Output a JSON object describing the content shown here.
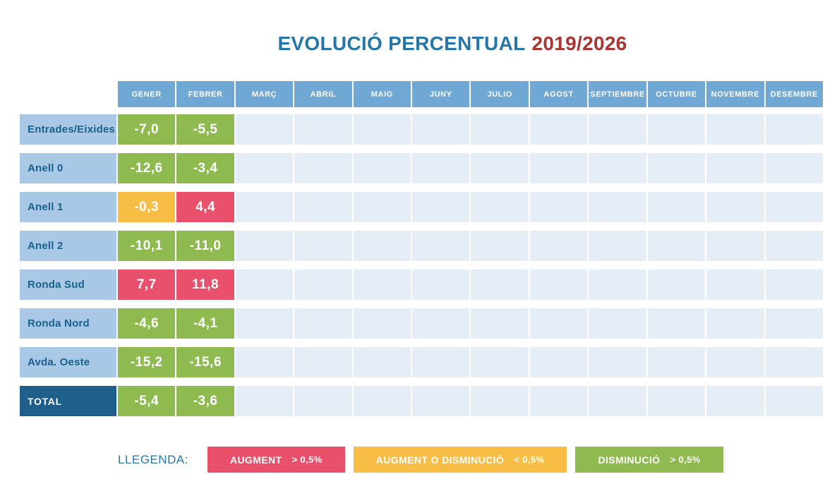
{
  "title": {
    "main": "EVOLUCIÓ PERCENTUAL",
    "years": "2019/2026"
  },
  "table": {
    "months": [
      "GENER",
      "FEBRER",
      "MARÇ",
      "ABRIL",
      "MAIG",
      "JUNY",
      "JULIO",
      "AGOST",
      "SEPTIEMBRE",
      "OCTUBRE",
      "NOVEMBRE",
      "DESEMBRE"
    ],
    "rows": [
      {
        "label": "Entrades/Eixides",
        "is_total": false,
        "values": [
          {
            "month": "GENER",
            "value": "-7,0",
            "status": "disminucio"
          },
          {
            "month": "FEBRER",
            "value": "-5,5",
            "status": "disminucio"
          }
        ]
      },
      {
        "label": "Anell 0",
        "is_total": false,
        "values": [
          {
            "month": "GENER",
            "value": "-12,6",
            "status": "disminucio"
          },
          {
            "month": "FEBRER",
            "value": "-3,4",
            "status": "disminucio"
          }
        ]
      },
      {
        "label": "Anell 1",
        "is_total": false,
        "values": [
          {
            "month": "GENER",
            "value": "-0,3",
            "status": "augment_o_disminucio"
          },
          {
            "month": "FEBRER",
            "value": "4,4",
            "status": "augment"
          }
        ]
      },
      {
        "label": "Anell 2",
        "is_total": false,
        "values": [
          {
            "month": "GENER",
            "value": "-10,1",
            "status": "disminucio"
          },
          {
            "month": "FEBRER",
            "value": "-11,0",
            "status": "disminucio"
          }
        ]
      },
      {
        "label": "Ronda Sud",
        "is_total": false,
        "values": [
          {
            "month": "GENER",
            "value": "7,7",
            "status": "augment"
          },
          {
            "month": "FEBRER",
            "value": "11,8",
            "status": "augment"
          }
        ]
      },
      {
        "label": "Ronda Nord",
        "is_total": false,
        "values": [
          {
            "month": "GENER",
            "value": "-4,6",
            "status": "disminucio"
          },
          {
            "month": "FEBRER",
            "value": "-4,1",
            "status": "disminucio"
          }
        ]
      },
      {
        "label": "Avda. Oeste",
        "is_total": false,
        "values": [
          {
            "month": "GENER",
            "value": "-15,2",
            "status": "disminucio"
          },
          {
            "month": "FEBRER",
            "value": "-15,6",
            "status": "disminucio"
          }
        ]
      },
      {
        "label": "TOTAL",
        "is_total": true,
        "values": [
          {
            "month": "GENER",
            "value": "-5,4",
            "status": "disminucio"
          },
          {
            "month": "FEBRER",
            "value": "-3,6",
            "status": "disminucio"
          }
        ]
      }
    ]
  },
  "legend": {
    "label": "LLEGENDA:",
    "items": [
      {
        "status": "augment",
        "text": "AUGMENT",
        "condition": "> 0,5%"
      },
      {
        "status": "augment_o_disminucio",
        "text": "AUGMENT O DISMINUCIÓ",
        "condition": "< 0,5%"
      },
      {
        "status": "disminucio",
        "text": "DISMINUCIÓ",
        "condition": "> 0,5%"
      }
    ]
  },
  "colors": {
    "title_blue": "#2677a9",
    "title_red": "#a93431",
    "header_blue": "#6fa8d5",
    "label_bg": "#a9c8e5",
    "label_text": "#19618e",
    "total_bg": "#1e5e8b",
    "empty_cell": "#e5edf7",
    "augment": "#e8506b",
    "augment_o_disminucio": "#f7bd45",
    "disminucio": "#8eba4f"
  },
  "chart_data": {
    "type": "table",
    "title": "EVOLUCIÓ PERCENTUAL 2019/2026",
    "columns": [
      "GENER",
      "FEBRER",
      "MARÇ",
      "ABRIL",
      "MAIG",
      "JUNY",
      "JULIO",
      "AGOST",
      "SEPTIEMBRE",
      "OCTUBRE",
      "NOVEMBRE",
      "DESEMBRE"
    ],
    "row_labels": [
      "Entrades/Eixides",
      "Anell 0",
      "Anell 1",
      "Anell 2",
      "Ronda Sud",
      "Ronda Nord",
      "Avda. Oeste",
      "TOTAL"
    ],
    "series": [
      {
        "name": "GENER",
        "values": [
          -7.0,
          -12.6,
          -0.3,
          -10.1,
          7.7,
          -4.6,
          -15.2,
          -5.4
        ]
      },
      {
        "name": "FEBRER",
        "values": [
          -5.5,
          -3.4,
          4.4,
          -11.0,
          11.8,
          -4.1,
          -15.6,
          -3.6
        ]
      }
    ],
    "empty_columns": [
      "MARÇ",
      "ABRIL",
      "MAIG",
      "JUNY",
      "JULIO",
      "AGOST",
      "SEPTIEMBRE",
      "OCTUBRE",
      "NOVEMBRE",
      "DESEMBRE"
    ],
    "legend_position": "bottom",
    "legend": [
      {
        "label": "AUGMENT > 0,5%",
        "color": "#e8506b"
      },
      {
        "label": "AUGMENT O DISMINUCIÓ < 0,5%",
        "color": "#f7bd45"
      },
      {
        "label": "DISMINUCIÓ > 0,5%",
        "color": "#8eba4f"
      }
    ]
  }
}
